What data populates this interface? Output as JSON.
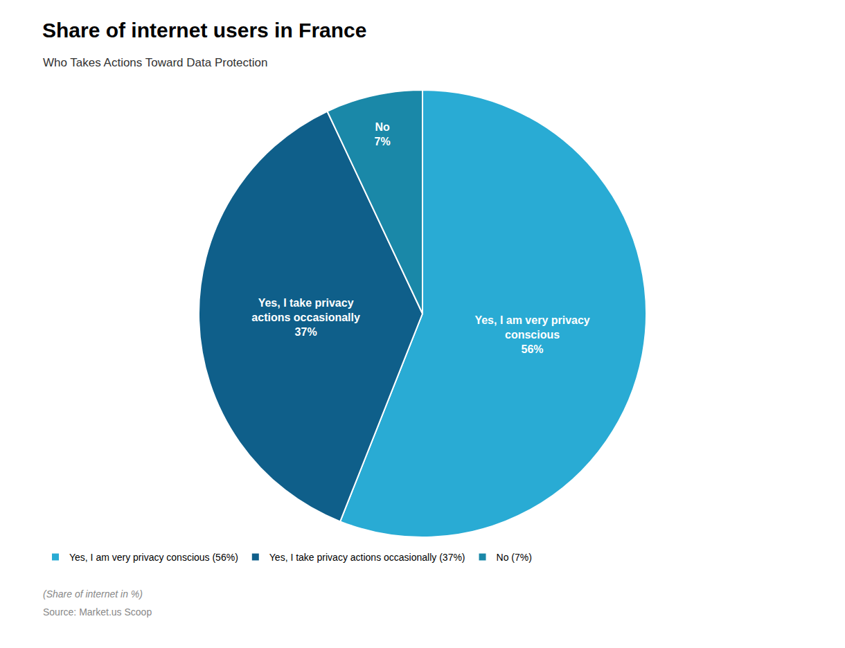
{
  "chart_data": {
    "type": "pie",
    "title": "Share of internet users in France",
    "subtitle": "Who Takes Actions Toward Data Protection",
    "categories": [
      "Yes, I am very privacy conscious",
      "Yes, I take privacy actions occasionally",
      "No"
    ],
    "values": [
      56,
      37,
      7
    ],
    "value_labels": [
      "56%",
      "37%",
      "7%"
    ],
    "data_labels": true,
    "colors": [
      "#29ABD4",
      "#0F5F8A",
      "#1A88A8"
    ],
    "legend_labels": [
      "Yes, I am very privacy conscious (56%)",
      "Yes, I take privacy actions occasionally (37%)",
      "No (7%)"
    ],
    "legend": "bottom",
    "annotations": [
      "(Share of internet in %)",
      "Source: Market.us Scoop"
    ]
  }
}
